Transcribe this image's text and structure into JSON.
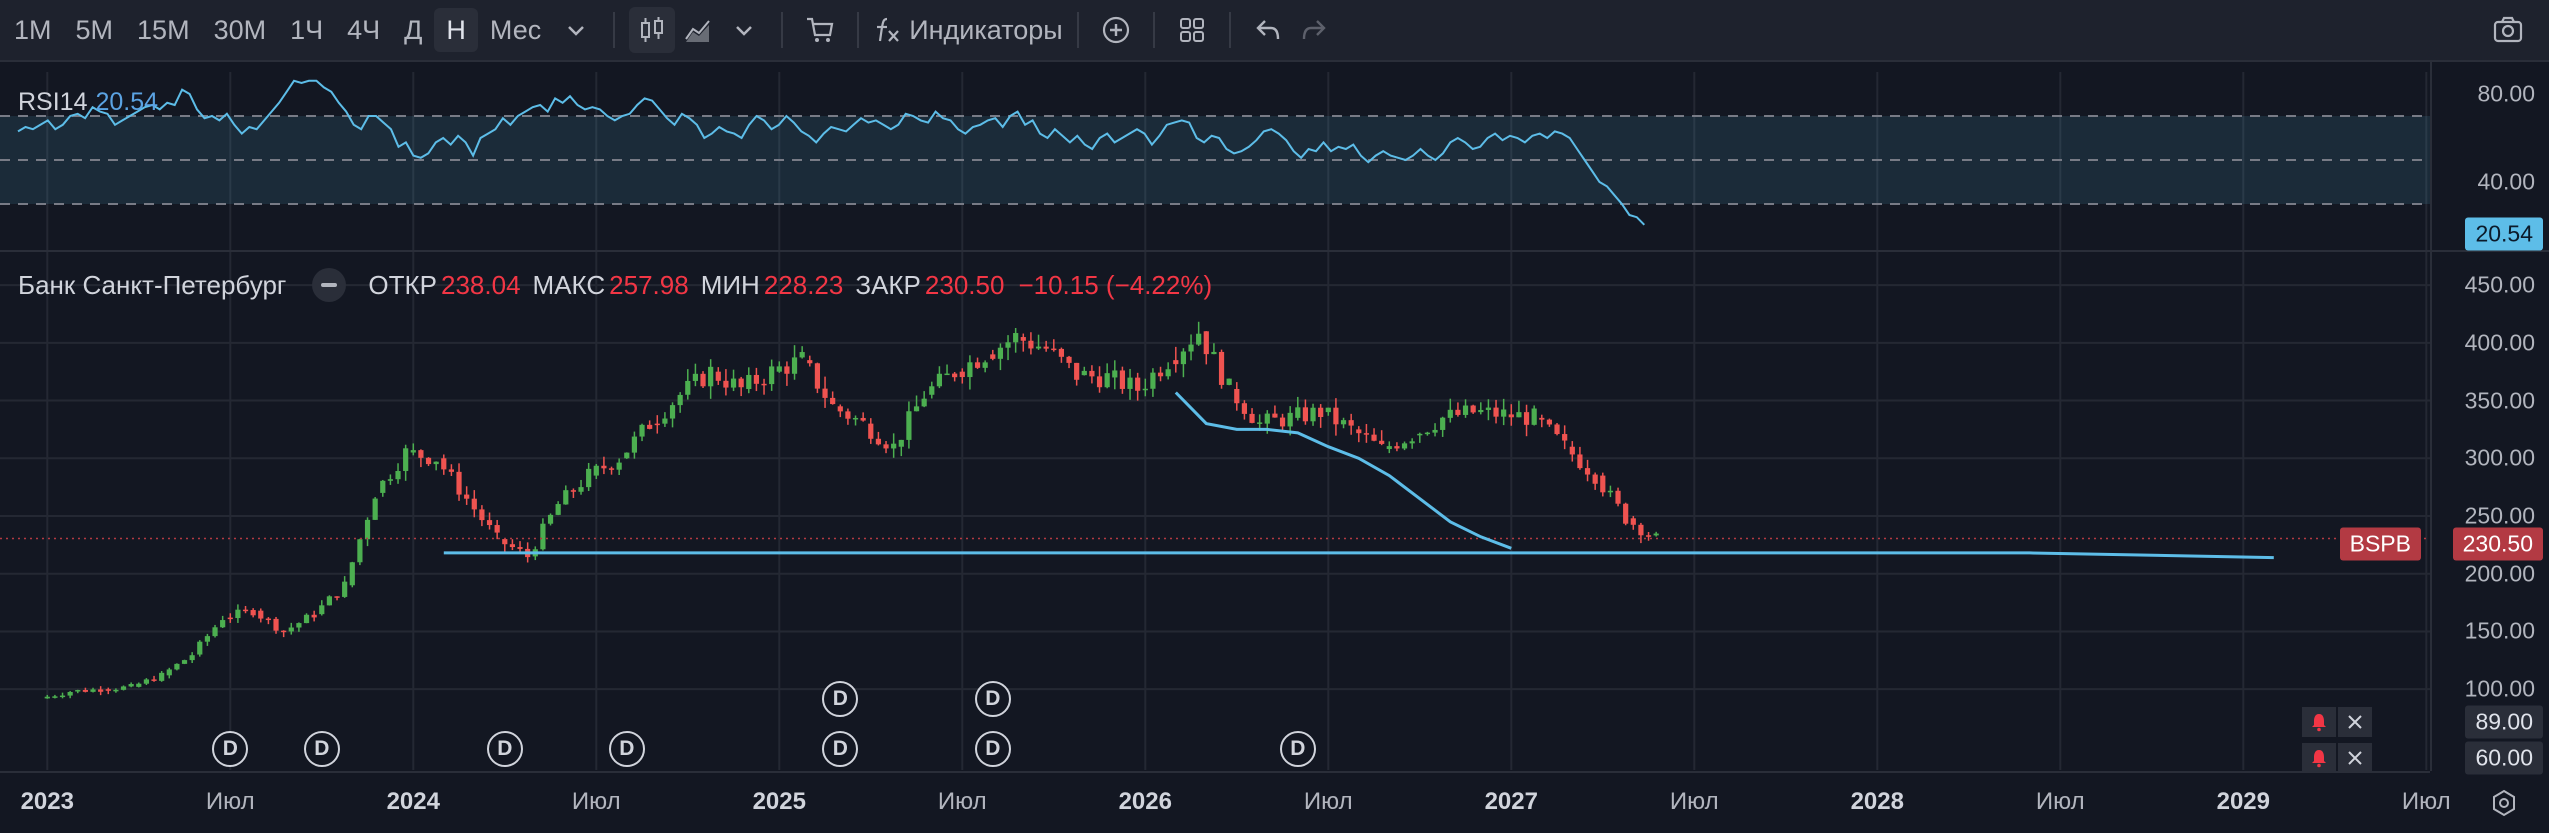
{
  "toolbar": {
    "timeframes": [
      "1М",
      "5М",
      "15М",
      "30М",
      "1Ч",
      "4Ч",
      "Д",
      "Н",
      "Мес"
    ],
    "active_timeframe": "Н",
    "indicators_label": "Индикаторы"
  },
  "rsi": {
    "name": "RSI14",
    "value": "20.54",
    "axis_labels": [
      "80.00",
      "40.00"
    ],
    "current_tag": "20.54",
    "levels": [
      70,
      50,
      30
    ],
    "ylim": [
      10,
      90
    ],
    "series": [
      63,
      65,
      64,
      66,
      68,
      64,
      66,
      70,
      71,
      69,
      74,
      72,
      71,
      66,
      68,
      70,
      72,
      74,
      75,
      73,
      76,
      75,
      82,
      80,
      73,
      69,
      70,
      68,
      71,
      66,
      62,
      65,
      64,
      68,
      72,
      76,
      81,
      86,
      85,
      86,
      86,
      83,
      81,
      76,
      72,
      66,
      64,
      70,
      70,
      67,
      64,
      56,
      58,
      52,
      51,
      53,
      58,
      60,
      57,
      61,
      58,
      52,
      60,
      62,
      64,
      69,
      66,
      70,
      72,
      74,
      75,
      72,
      78,
      76,
      79,
      75,
      73,
      74,
      73,
      70,
      68,
      70,
      71,
      75,
      78,
      77,
      73,
      69,
      66,
      71,
      69,
      66,
      60,
      62,
      65,
      63,
      62,
      60,
      66,
      70,
      68,
      64,
      66,
      70,
      67,
      63,
      61,
      58,
      62,
      65,
      64,
      63,
      66,
      69,
      67,
      68,
      66,
      64,
      66,
      71,
      70,
      68,
      67,
      72,
      69,
      68,
      64,
      62,
      65,
      66,
      68,
      69,
      65,
      70,
      72,
      66,
      68,
      62,
      60,
      64,
      61,
      58,
      61,
      57,
      55,
      60,
      62,
      58,
      60,
      62,
      64,
      62,
      57,
      61,
      66,
      67,
      68,
      67,
      60,
      58,
      61,
      60,
      55,
      53,
      54,
      56,
      59,
      63,
      64,
      62,
      59,
      54,
      51,
      55,
      54,
      58,
      54,
      56,
      55,
      57,
      52,
      49,
      52,
      54,
      52,
      51,
      50,
      52,
      55,
      52,
      50,
      53,
      58,
      60,
      58,
      55,
      56,
      60,
      62,
      59,
      61,
      60,
      58,
      61,
      62,
      60,
      63,
      62,
      60,
      55,
      50,
      45,
      40,
      38,
      34,
      30,
      25,
      24,
      20.54
    ]
  },
  "main": {
    "symbol_name": "Банк Санкт-Петербург",
    "open_label": "ОТКР",
    "open": "238.04",
    "high_label": "МАКС",
    "high": "257.98",
    "low_label": "МИН",
    "low": "228.23",
    "close_label": "ЗАКР",
    "close": "230.50",
    "change": "−10.15 (−4.22%)",
    "ticker_tag": "BSPB",
    "price_tag": "230.50",
    "axis_labels": [
      "450.00",
      "400.00",
      "350.00",
      "300.00",
      "250.00",
      "200.00",
      "150.00",
      "100.00"
    ],
    "alerts": [
      {
        "price_tag": "89.00"
      },
      {
        "price_tag": "60.00"
      }
    ],
    "dividend_marker": "D",
    "colors": {
      "up": "#26a69a",
      "down": "#ef5350",
      "up_candle": "#4caf50",
      "line": "#5dbde8",
      "price_line": "#b33a43"
    }
  },
  "time_axis": {
    "labels": [
      "2023",
      "Июл",
      "2024",
      "Июл",
      "2025",
      "Июл",
      "2026",
      "Июл",
      "2027",
      "Июл",
      "2028",
      "Июл",
      "2029",
      "Июл"
    ],
    "years": [
      "2023",
      "2024",
      "2025",
      "2026",
      "2027",
      "2028",
      "2029"
    ]
  },
  "chart_data": {
    "type": "candlestick",
    "title": "",
    "ylim": [
      30,
      470
    ],
    "price_range_note": "",
    "monthly_close": [
      {
        "month": "2023-01",
        "close": 98
      },
      {
        "month": "2023-02",
        "close": 100
      },
      {
        "month": "2023-03",
        "close": 102
      },
      {
        "month": "2023-04",
        "close": 112
      },
      {
        "month": "2023-05",
        "close": 130
      },
      {
        "month": "2023-06",
        "close": 162
      },
      {
        "month": "2023-07",
        "close": 168
      },
      {
        "month": "2023-08",
        "close": 150
      },
      {
        "month": "2023-09",
        "close": 165
      },
      {
        "month": "2023-10",
        "close": 190
      },
      {
        "month": "2023-11",
        "close": 270
      },
      {
        "month": "2023-12",
        "close": 305
      },
      {
        "month": "2024-01",
        "close": 300
      },
      {
        "month": "2024-02",
        "close": 265
      },
      {
        "month": "2024-03",
        "close": 230
      },
      {
        "month": "2024-04",
        "close": 215
      },
      {
        "month": "2024-05",
        "close": 260
      },
      {
        "month": "2024-06",
        "close": 285
      },
      {
        "month": "2024-07",
        "close": 300
      },
      {
        "month": "2024-08",
        "close": 330
      },
      {
        "month": "2024-09",
        "close": 355
      },
      {
        "month": "2024-10",
        "close": 375
      },
      {
        "month": "2024-11",
        "close": 360
      },
      {
        "month": "2024-12",
        "close": 375
      },
      {
        "month": "2025-01",
        "close": 385
      },
      {
        "month": "2025-02",
        "close": 345
      },
      {
        "month": "2025-03",
        "close": 330
      },
      {
        "month": "2025-04",
        "close": 310
      },
      {
        "month": "2025-05",
        "close": 355
      },
      {
        "month": "2025-06",
        "close": 375
      },
      {
        "month": "2025-07",
        "close": 390
      },
      {
        "month": "2025-08",
        "close": 405
      },
      {
        "month": "2025-09",
        "close": 395
      },
      {
        "month": "2025-10",
        "close": 372
      },
      {
        "month": "2025-11",
        "close": 370
      },
      {
        "month": "2025-12",
        "close": 360
      },
      {
        "month": "2026-01",
        "close": 385
      },
      {
        "month": "2026-02",
        "close": 410
      },
      {
        "month": "2026-03",
        "close": 360
      },
      {
        "month": "2026-04",
        "close": 330
      },
      {
        "month": "2026-05",
        "close": 335
      },
      {
        "month": "2026-06",
        "close": 340
      },
      {
        "month": "2026-07",
        "close": 325
      },
      {
        "month": "2026-08",
        "close": 308
      },
      {
        "month": "2026-09",
        "close": 320
      },
      {
        "month": "2026-10",
        "close": 335
      },
      {
        "month": "2026-11",
        "close": 340
      },
      {
        "month": "2026-12",
        "close": 338
      },
      {
        "month": "2027-01",
        "close": 335
      },
      {
        "month": "2027-02",
        "close": 310
      },
      {
        "month": "2027-03",
        "close": 285
      },
      {
        "month": "2027-04",
        "close": 248
      },
      {
        "month": "2027-05",
        "close": 230.5
      }
    ],
    "moving_average": [
      {
        "month": "2026-02",
        "value": 357
      },
      {
        "month": "2026-03",
        "value": 330
      },
      {
        "month": "2026-04",
        "value": 325
      },
      {
        "month": "2026-05",
        "value": 325
      },
      {
        "month": "2026-06",
        "value": 322
      },
      {
        "month": "2026-07",
        "value": 310
      },
      {
        "month": "2026-08",
        "value": 300
      },
      {
        "month": "2026-09",
        "value": 285
      },
      {
        "month": "2026-10",
        "value": 265
      },
      {
        "month": "2026-11",
        "value": 245
      },
      {
        "month": "2026-12",
        "value": 232
      },
      {
        "month": "2027-01",
        "value": 222
      }
    ],
    "forecast_line": [
      {
        "month": "2024-02",
        "value": 218
      },
      {
        "month": "2028-06",
        "value": 218
      },
      {
        "month": "2029-02",
        "value": 214
      }
    ],
    "price_line": 230.5,
    "alert_levels": [
      89,
      60
    ],
    "dividend_markers": [
      "2023-07",
      "2023-10",
      "2024-04",
      "2024-08",
      "2025-03",
      "2025-03",
      "2025-08",
      "2025-08",
      "2026-06"
    ]
  }
}
